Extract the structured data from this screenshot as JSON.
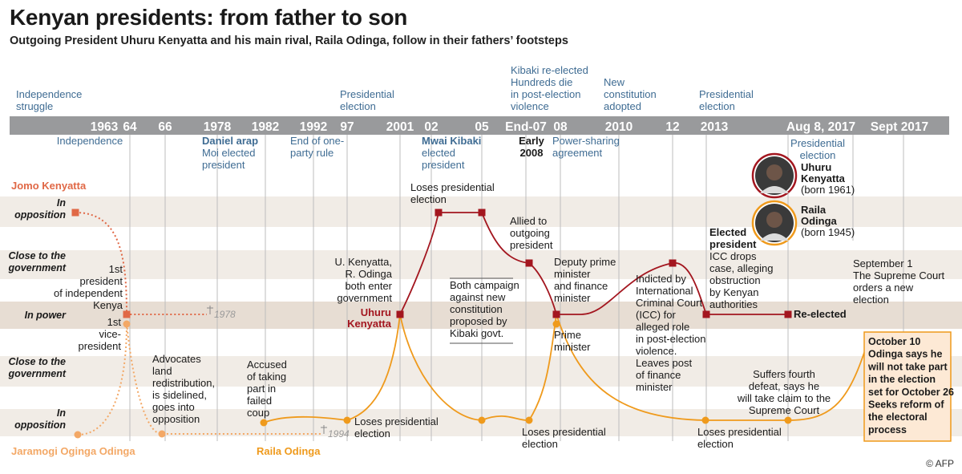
{
  "title": "Kenyan presidents: from father to son",
  "subtitle": "Outgoing President Uhuru Kenyatta and his main rival, Raila Odinga, follow in their fathers’ footsteps",
  "credit": "© AFP",
  "colors": {
    "kenyatta": "#a3161f",
    "odinga": "#ef9a1c",
    "jomo": "#e06846",
    "jaramogi": "#f3a866",
    "blue": "#3f6c93",
    "bar": "#999a9c",
    "band": "#f1ece6",
    "power": "#e7ddd3"
  },
  "rows": [
    {
      "id": "opp_top",
      "label": [
        "In",
        "opposition"
      ]
    },
    {
      "id": "close_top",
      "label": [
        "Close to the",
        "government"
      ]
    },
    {
      "id": "power",
      "label": [
        "In power"
      ]
    },
    {
      "id": "close_bottom",
      "label": [
        "Close to the",
        "government"
      ]
    },
    {
      "id": "opp_bottom",
      "label": [
        "In",
        "opposition"
      ]
    }
  ],
  "years": [
    "1963",
    "64",
    "66",
    "1978",
    "1982",
    "1992",
    "97",
    "2001",
    "02",
    "05",
    "End-07",
    "08",
    "2010",
    "12",
    "2013",
    "Aug 8, 2017",
    "Sept 2017"
  ],
  "top_events": [
    {
      "id": "independence_struggle",
      "lines": [
        "Independence",
        "struggle"
      ]
    },
    {
      "id": "pres_election_97",
      "lines": [
        "Presidential",
        "election"
      ]
    },
    {
      "id": "kibaki_reelected",
      "lines": [
        "Kibaki re-elected",
        "Hundreds die",
        "in post-election",
        "violence"
      ]
    },
    {
      "id": "new_constitution",
      "lines": [
        "New",
        "constitution",
        "adopted"
      ]
    },
    {
      "id": "pres_election_2013",
      "lines": [
        "Presidential",
        "election"
      ]
    }
  ],
  "below_bar_events": [
    {
      "id": "independence",
      "lines": [
        "Independence"
      ]
    },
    {
      "id": "moi",
      "lines": [
        "Daniel arap",
        "Moi elected",
        "president"
      ]
    },
    {
      "id": "one_party",
      "lines": [
        "End of one-",
        "party rule"
      ]
    },
    {
      "id": "kibaki",
      "lines": [
        "Mwai Kibaki",
        "elected",
        "president"
      ]
    },
    {
      "id": "early2008",
      "lines": [
        "Early",
        "2008"
      ]
    },
    {
      "id": "power_sharing",
      "lines": [
        "Power-sharing",
        "agreement"
      ]
    },
    {
      "id": "pres_election_2017",
      "lines": [
        "Presidential",
        "election"
      ]
    }
  ],
  "people": {
    "jomo": "Jomo Kenyatta",
    "jaramogi": "Jaramogi Oginga Odinga",
    "raila": "Raila Odinga",
    "uhuru": [
      "Uhuru",
      "Kenyatta"
    ],
    "uhuru_legend": {
      "name": [
        "Uhuru",
        "Kenyatta"
      ],
      "born": "(born 1961)"
    },
    "raila_legend": {
      "name": [
        "Raila",
        "Odinga"
      ],
      "born": "(born 1945)"
    }
  },
  "deaths": {
    "jomo": "1978",
    "jaramogi": "1994"
  },
  "annotations": {
    "first_president": [
      "1st",
      "president",
      "of independent",
      "Kenya"
    ],
    "first_vp": [
      "1st",
      "vice-",
      "president"
    ],
    "advocates": [
      "Advocates",
      "land",
      "redistribution,",
      "is sidelined,",
      "goes into",
      "opposition"
    ],
    "coup": [
      "Accused",
      "of taking",
      "part in",
      "failed",
      "coup"
    ],
    "loses_97": [
      "Loses presidential",
      "election"
    ],
    "both_enter": [
      "U. Kenyatta,",
      "R. Odinga",
      "both enter",
      "government"
    ],
    "loses_02": [
      "Loses presidential",
      "election"
    ],
    "campaign": [
      "Both campaign",
      "against new",
      "constitution",
      "proposed by",
      "Kibaki govt."
    ],
    "allied": [
      "Allied to",
      "outgoing",
      "president"
    ],
    "loses_07": [
      "Loses presidential",
      "election"
    ],
    "deputy_pm": [
      "Deputy prime",
      "minister",
      "and finance",
      "minister"
    ],
    "pm": [
      "Prime",
      "minister"
    ],
    "indicted": [
      "Indicted by",
      "International",
      "Criminal Court",
      "(ICC) for",
      "alleged role",
      "in post-election",
      "violence.",
      "Leaves post",
      "of finance",
      "minister"
    ],
    "elected_president": [
      "Elected",
      "president"
    ],
    "icc_drops": [
      "ICC drops",
      "case, alleging",
      "obstruction",
      "by Kenyan",
      "authorities"
    ],
    "reelected": "Re-elected",
    "fourth_defeat": [
      "Suffers fourth",
      "defeat, says he",
      "will take claim to the",
      "Supreme Court"
    ],
    "loses_13": [
      "Loses presidential",
      "election"
    ],
    "sept1": [
      "September 1",
      "The Supreme Court",
      "orders a new",
      "election"
    ],
    "oct10": [
      "October 10",
      "Odinga says he",
      "will not take part",
      "in the election",
      "set for October 26",
      "Seeks reform of",
      "the electoral",
      "process"
    ]
  }
}
